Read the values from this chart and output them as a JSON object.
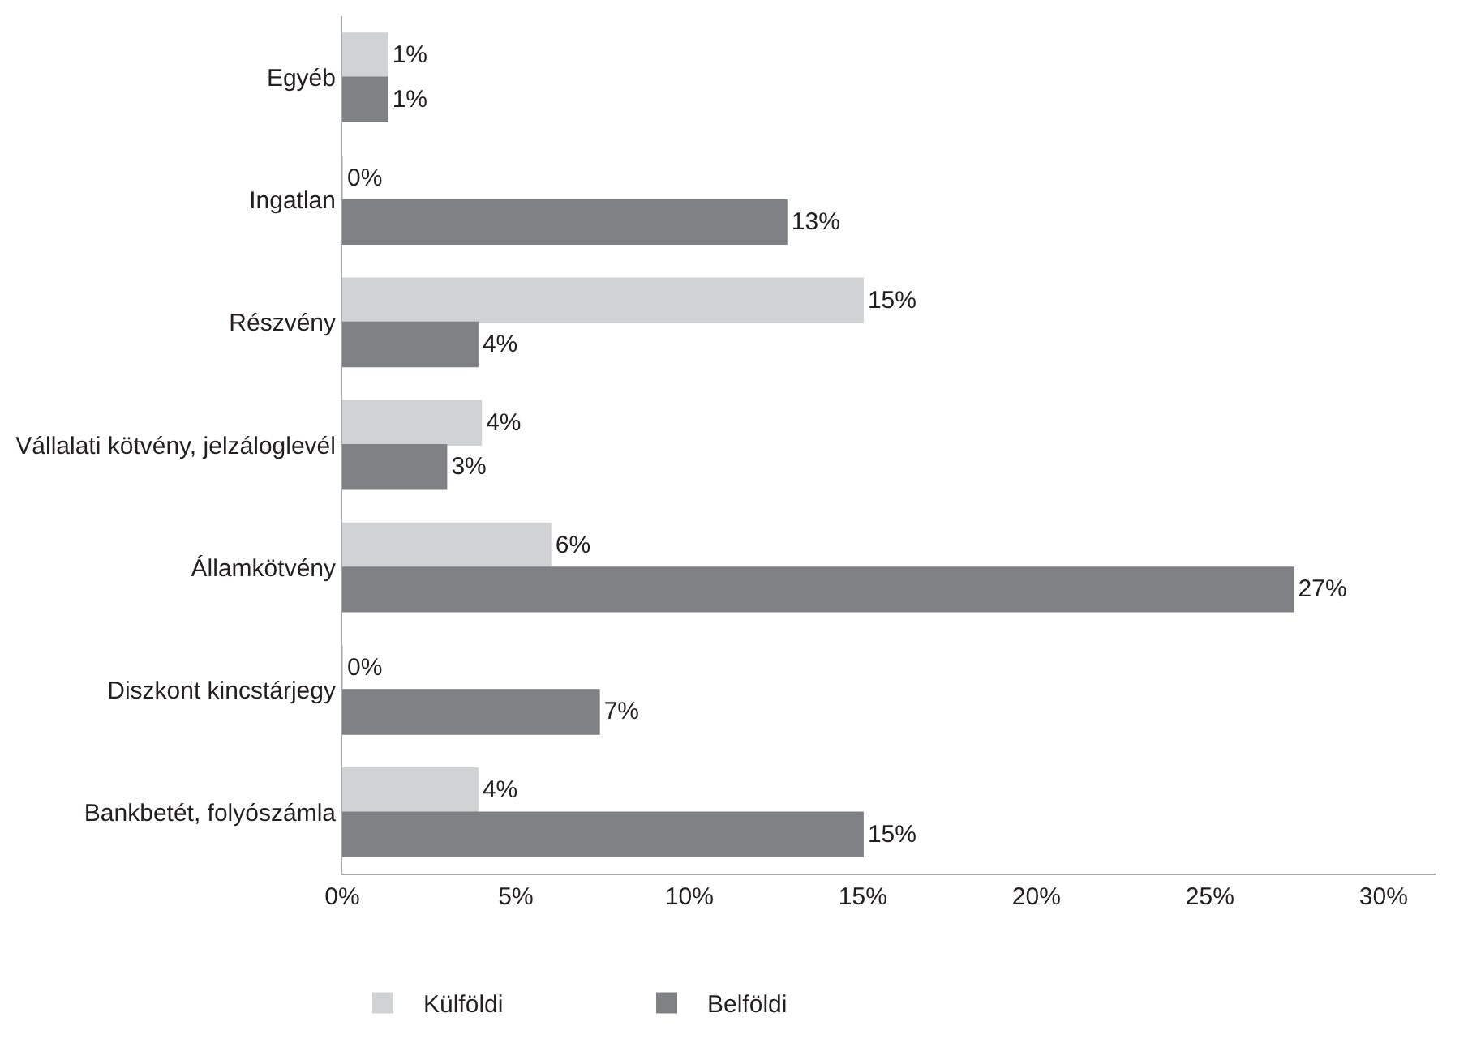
{
  "chart_data": {
    "type": "bar",
    "orientation": "horizontal",
    "categories": [
      "Egyéb",
      "Ingatlan",
      "Részvény",
      "Vállalati kötvény, jelzáloglevél",
      "Államkötvény",
      "Diszkont kincstárjegy",
      "Bankbetét, folyószámla"
    ],
    "series": [
      {
        "name": "Külföldi",
        "color": "#d1d2d4",
        "values": [
          1.3,
          0,
          15.0,
          4.0,
          6.0,
          0,
          3.9
        ],
        "value_labels": [
          "1%",
          "0%",
          "15%",
          "4%",
          "6%",
          "0%",
          "4%"
        ]
      },
      {
        "name": "Belföldi",
        "color": "#808184",
        "values": [
          1.3,
          12.8,
          3.9,
          3.0,
          27.4,
          7.4,
          15.0
        ],
        "value_labels": [
          "1%",
          "13%",
          "4%",
          "3%",
          "27%",
          "7%",
          "15%"
        ]
      }
    ],
    "xlim": [
      0,
      31.5
    ],
    "xticks": [
      {
        "value": 0,
        "label": "0%"
      },
      {
        "value": 5,
        "label": "5%"
      },
      {
        "value": 10,
        "label": "10%"
      },
      {
        "value": 15,
        "label": "15%"
      },
      {
        "value": 20,
        "label": "20%"
      },
      {
        "value": 25,
        "label": "25%"
      },
      {
        "value": 30,
        "label": "30%"
      }
    ],
    "legend": "bottom"
  }
}
